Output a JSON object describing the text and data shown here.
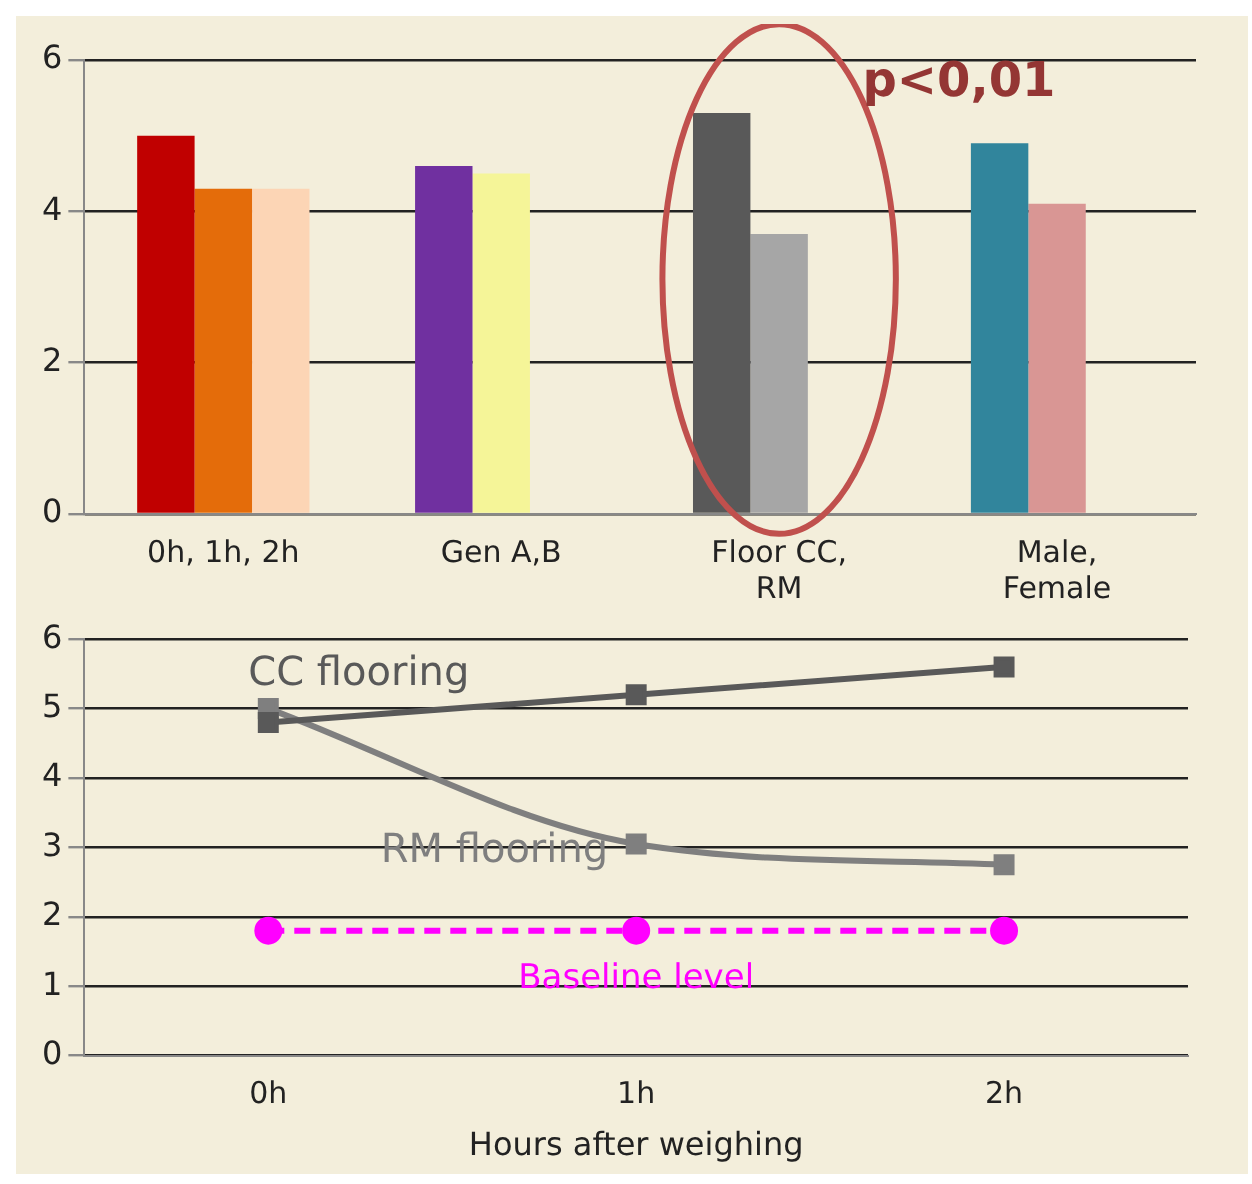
{
  "chart_data": [
    {
      "type": "bar",
      "categories": [
        "0h, 1h, 2h",
        "Gen A,B",
        "Floor CC, RM",
        "Male, Female"
      ],
      "series": [
        {
          "colors": [
            "#c00000",
            "#7030a0",
            "#595959",
            "#31859c"
          ],
          "values": [
            5.0,
            4.6,
            5.3,
            4.9
          ]
        },
        {
          "colors": [
            "#e46c0a",
            "#f5f598",
            "#a6a6a6",
            "#d99694"
          ],
          "values": [
            4.3,
            4.5,
            3.7,
            4.1
          ]
        },
        {
          "colors": [
            "#fcd5b5",
            null,
            null,
            null
          ],
          "values": [
            4.3,
            null,
            null,
            null
          ]
        }
      ],
      "ylim": [
        0,
        6
      ],
      "yticks": [
        0,
        2,
        4,
        6
      ],
      "grid": "y",
      "legend": false,
      "annotations": [
        "p<0,01"
      ]
    },
    {
      "type": "line",
      "categories": [
        "0h",
        "1h",
        "2h"
      ],
      "xlabel": "Hours after weighing",
      "series": [
        {
          "name": "CC flooring",
          "color": "#595959",
          "values": [
            4.8,
            5.2,
            5.6
          ]
        },
        {
          "name": "RM flooring",
          "color": "#7f7f7f",
          "values": [
            5.0,
            3.05,
            2.75
          ]
        },
        {
          "name": "Baseline level",
          "color": "#ff00ff",
          "values": [
            1.8,
            1.8,
            1.8
          ],
          "line_style": "dashed",
          "marker": "circle"
        }
      ],
      "ylim": [
        0,
        6
      ],
      "yticks": [
        0,
        1,
        2,
        3,
        4,
        5,
        6
      ],
      "grid": "y",
      "legend": false,
      "marker": "square"
    }
  ]
}
